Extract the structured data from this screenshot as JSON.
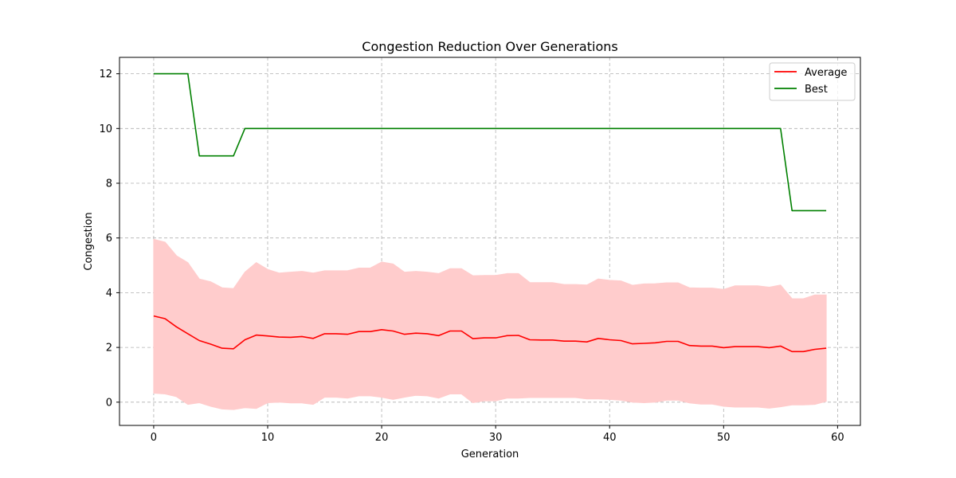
{
  "chart_data": {
    "type": "line",
    "title": "Congestion Reduction Over Generations",
    "xlabel": "Generation",
    "ylabel": "Congestion",
    "xlim": [
      -3,
      62
    ],
    "ylim": [
      -0.85,
      12.6
    ],
    "xticks": [
      0,
      10,
      20,
      30,
      40,
      50,
      60
    ],
    "yticks": [
      0,
      2,
      4,
      6,
      8,
      10,
      12
    ],
    "grid": true,
    "legend_position": "upper-right",
    "x": [
      0,
      1,
      2,
      3,
      4,
      5,
      6,
      7,
      8,
      9,
      10,
      11,
      12,
      13,
      14,
      15,
      16,
      17,
      18,
      19,
      20,
      21,
      22,
      23,
      24,
      25,
      26,
      27,
      28,
      29,
      30,
      31,
      32,
      33,
      34,
      35,
      36,
      37,
      38,
      39,
      40,
      41,
      42,
      43,
      44,
      45,
      46,
      47,
      48,
      49,
      50,
      51,
      52,
      53,
      54,
      55,
      56,
      57,
      58,
      59
    ],
    "series": [
      {
        "name": "Average",
        "color": "#ff0000",
        "values": [
          3.15,
          3.05,
          2.75,
          2.5,
          2.25,
          2.12,
          1.97,
          1.95,
          2.28,
          2.45,
          2.42,
          2.38,
          2.37,
          2.4,
          2.33,
          2.5,
          2.5,
          2.48,
          2.58,
          2.58,
          2.65,
          2.6,
          2.48,
          2.52,
          2.5,
          2.43,
          2.6,
          2.6,
          2.32,
          2.35,
          2.35,
          2.43,
          2.44,
          2.28,
          2.27,
          2.27,
          2.23,
          2.23,
          2.2,
          2.33,
          2.28,
          2.25,
          2.13,
          2.15,
          2.17,
          2.22,
          2.22,
          2.07,
          2.05,
          2.05,
          1.99,
          2.03,
          2.03,
          2.03,
          1.99,
          2.05,
          1.85,
          1.85,
          1.93,
          1.97
        ],
        "band_upper": [
          5.95,
          5.85,
          5.35,
          5.1,
          4.5,
          4.4,
          4.18,
          4.15,
          4.75,
          5.1,
          4.85,
          4.72,
          4.75,
          4.78,
          4.72,
          4.8,
          4.8,
          4.8,
          4.9,
          4.9,
          5.12,
          5.05,
          4.75,
          4.78,
          4.75,
          4.7,
          4.88,
          4.88,
          4.62,
          4.63,
          4.63,
          4.7,
          4.7,
          4.37,
          4.37,
          4.37,
          4.3,
          4.3,
          4.28,
          4.5,
          4.45,
          4.43,
          4.27,
          4.32,
          4.33,
          4.36,
          4.36,
          4.18,
          4.17,
          4.17,
          4.12,
          4.25,
          4.25,
          4.25,
          4.2,
          4.28,
          3.78,
          3.78,
          3.92,
          3.92
        ],
        "band_lower": [
          0.33,
          0.3,
          0.2,
          -0.08,
          -0.02,
          -0.15,
          -0.25,
          -0.27,
          -0.2,
          -0.23,
          -0.02,
          0.0,
          -0.03,
          -0.03,
          -0.08,
          0.18,
          0.18,
          0.15,
          0.23,
          0.23,
          0.18,
          0.1,
          0.18,
          0.25,
          0.23,
          0.15,
          0.3,
          0.3,
          -0.02,
          0.05,
          0.05,
          0.15,
          0.15,
          0.17,
          0.17,
          0.17,
          0.17,
          0.17,
          0.12,
          0.12,
          0.1,
          0.07,
          0.0,
          -0.02,
          0.0,
          0.07,
          0.07,
          -0.03,
          -0.07,
          -0.07,
          -0.15,
          -0.18,
          -0.18,
          -0.18,
          -0.22,
          -0.17,
          -0.1,
          -0.1,
          -0.08,
          0.03
        ],
        "band_color": "#ffcccc"
      },
      {
        "name": "Best",
        "color": "#008000",
        "values": [
          12,
          12,
          12,
          12,
          9,
          9,
          9,
          9,
          10,
          10,
          10,
          10,
          10,
          10,
          10,
          10,
          10,
          10,
          10,
          10,
          10,
          10,
          10,
          10,
          10,
          10,
          10,
          10,
          10,
          10,
          10,
          10,
          10,
          10,
          10,
          10,
          10,
          10,
          10,
          10,
          10,
          10,
          10,
          10,
          10,
          10,
          10,
          10,
          10,
          10,
          10,
          10,
          10,
          10,
          10,
          10,
          7,
          7,
          7,
          7
        ]
      }
    ]
  }
}
